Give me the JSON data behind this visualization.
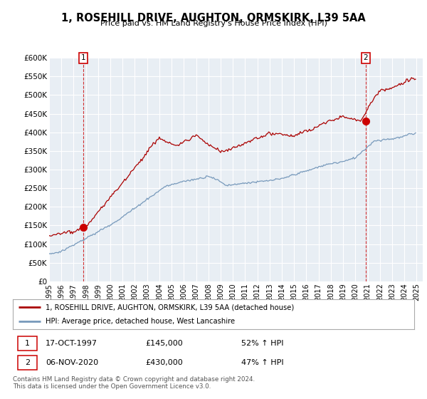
{
  "title": "1, ROSEHILL DRIVE, AUGHTON, ORMSKIRK, L39 5AA",
  "subtitle": "Price paid vs. HM Land Registry's House Price Index (HPI)",
  "ylim": [
    0,
    600000
  ],
  "yticks": [
    0,
    50000,
    100000,
    150000,
    200000,
    250000,
    300000,
    350000,
    400000,
    450000,
    500000,
    550000,
    600000
  ],
  "ytick_labels": [
    "£0",
    "£50K",
    "£100K",
    "£150K",
    "£200K",
    "£250K",
    "£300K",
    "£350K",
    "£400K",
    "£450K",
    "£500K",
    "£550K",
    "£600K"
  ],
  "xlim_start": 1995.0,
  "xlim_end": 2025.5,
  "sale1_x": 1997.79,
  "sale1_y": 145000,
  "sale2_x": 2020.84,
  "sale2_y": 430000,
  "red_color": "#aa0000",
  "blue_color": "#7799bb",
  "bg_plot_color": "#e8eef4",
  "grid_color": "#ffffff",
  "legend_line1": "1, ROSEHILL DRIVE, AUGHTON, ORMSKIRK, L39 5AA (detached house)",
  "legend_line2": "HPI: Average price, detached house, West Lancashire",
  "footer": "Contains HM Land Registry data © Crown copyright and database right 2024.\nThis data is licensed under the Open Government Licence v3.0.",
  "red_marker_color": "#cc0000",
  "background_color": "#ffffff"
}
